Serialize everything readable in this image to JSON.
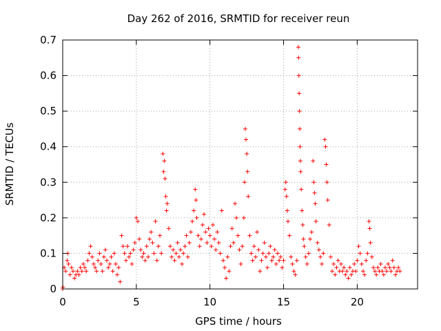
{
  "chart_data": {
    "type": "scatter",
    "title": "Day 262 of 2016, SRMTID for receiver reun",
    "xlabel": "GPS time / hours",
    "ylabel": "SRMTID / TECUs",
    "xlim": [
      0,
      24.1
    ],
    "ylim": [
      0,
      0.7
    ],
    "xticks": [
      0,
      5,
      10,
      15,
      20
    ],
    "xtick_labels": [
      "0",
      "5",
      "10",
      "15",
      "20"
    ],
    "yticks": [
      0,
      0.1,
      0.2,
      0.3,
      0.4,
      0.5,
      0.6,
      0.7
    ],
    "ytick_labels": [
      "0",
      "0.1",
      "0.2",
      "0.3",
      "0.4",
      "0.5",
      "0.6",
      "0.7"
    ],
    "grid": true,
    "marker": "+",
    "series": [
      {
        "name": "SRMTID",
        "color": "#ff0000",
        "points": [
          [
            0.0,
            0.0
          ],
          [
            0.02,
            0.005
          ],
          [
            0.1,
            0.06
          ],
          [
            0.2,
            0.05
          ],
          [
            0.3,
            0.08
          ],
          [
            0.35,
            0.1
          ],
          [
            0.4,
            0.07
          ],
          [
            0.5,
            0.04
          ],
          [
            0.6,
            0.06
          ],
          [
            0.7,
            0.05
          ],
          [
            0.8,
            0.03
          ],
          [
            0.9,
            0.04
          ],
          [
            1.0,
            0.05
          ],
          [
            1.1,
            0.04
          ],
          [
            1.2,
            0.06
          ],
          [
            1.3,
            0.05
          ],
          [
            1.4,
            0.07
          ],
          [
            1.5,
            0.06
          ],
          [
            1.6,
            0.05
          ],
          [
            1.7,
            0.08
          ],
          [
            1.8,
            0.1
          ],
          [
            1.9,
            0.12
          ],
          [
            2.0,
            0.09
          ],
          [
            2.1,
            0.07
          ],
          [
            2.2,
            0.06
          ],
          [
            2.3,
            0.05
          ],
          [
            2.4,
            0.08
          ],
          [
            2.5,
            0.1
          ],
          [
            2.6,
            0.07
          ],
          [
            2.7,
            0.05
          ],
          [
            2.8,
            0.09
          ],
          [
            2.9,
            0.11
          ],
          [
            3.0,
            0.08
          ],
          [
            3.1,
            0.06
          ],
          [
            3.2,
            0.07
          ],
          [
            3.3,
            0.09
          ],
          [
            3.4,
            0.05
          ],
          [
            3.5,
            0.1
          ],
          [
            3.6,
            0.07
          ],
          [
            3.7,
            0.04
          ],
          [
            3.8,
            0.06
          ],
          [
            3.9,
            0.02
          ],
          [
            4.0,
            0.15
          ],
          [
            4.1,
            0.12
          ],
          [
            4.2,
            0.1
          ],
          [
            4.3,
            0.08
          ],
          [
            4.4,
            0.12
          ],
          [
            4.5,
            0.09
          ],
          [
            4.6,
            0.1
          ],
          [
            4.7,
            0.07
          ],
          [
            4.8,
            0.11
          ],
          [
            4.9,
            0.13
          ],
          [
            5.0,
            0.2
          ],
          [
            5.1,
            0.19
          ],
          [
            5.2,
            0.14
          ],
          [
            5.3,
            0.11
          ],
          [
            5.4,
            0.09
          ],
          [
            5.5,
            0.1
          ],
          [
            5.6,
            0.08
          ],
          [
            5.7,
            0.12
          ],
          [
            5.8,
            0.09
          ],
          [
            5.9,
            0.14
          ],
          [
            6.0,
            0.16
          ],
          [
            6.1,
            0.13
          ],
          [
            6.2,
            0.1
          ],
          [
            6.3,
            0.19
          ],
          [
            6.4,
            0.08
          ],
          [
            6.5,
            0.12
          ],
          [
            6.6,
            0.15
          ],
          [
            6.7,
            0.1
          ],
          [
            6.8,
            0.38
          ],
          [
            6.85,
            0.33
          ],
          [
            6.9,
            0.36
          ],
          [
            6.95,
            0.31
          ],
          [
            7.0,
            0.26
          ],
          [
            7.05,
            0.22
          ],
          [
            7.1,
            0.24
          ],
          [
            7.2,
            0.17
          ],
          [
            7.3,
            0.12
          ],
          [
            7.4,
            0.09
          ],
          [
            7.5,
            0.11
          ],
          [
            7.6,
            0.08
          ],
          [
            7.7,
            0.1
          ],
          [
            7.8,
            0.13
          ],
          [
            7.9,
            0.09
          ],
          [
            8.0,
            0.11
          ],
          [
            8.1,
            0.07
          ],
          [
            8.2,
            0.1
          ],
          [
            8.3,
            0.12
          ],
          [
            8.4,
            0.15
          ],
          [
            8.5,
            0.09
          ],
          [
            8.6,
            0.13
          ],
          [
            8.7,
            0.16
          ],
          [
            8.8,
            0.19
          ],
          [
            8.9,
            0.22
          ],
          [
            9.0,
            0.28
          ],
          [
            9.05,
            0.25
          ],
          [
            9.1,
            0.2
          ],
          [
            9.2,
            0.15
          ],
          [
            9.3,
            0.12
          ],
          [
            9.4,
            0.14
          ],
          [
            9.5,
            0.18
          ],
          [
            9.6,
            0.21
          ],
          [
            9.7,
            0.16
          ],
          [
            9.8,
            0.13
          ],
          [
            9.9,
            0.17
          ],
          [
            10.0,
            0.15
          ],
          [
            10.1,
            0.12
          ],
          [
            10.2,
            0.18
          ],
          [
            10.3,
            0.14
          ],
          [
            10.4,
            0.11
          ],
          [
            10.5,
            0.16
          ],
          [
            10.6,
            0.13
          ],
          [
            10.7,
            0.1
          ],
          [
            10.8,
            0.22
          ],
          [
            10.9,
            0.08
          ],
          [
            11.0,
            0.06
          ],
          [
            11.1,
            0.03
          ],
          [
            11.2,
            0.09
          ],
          [
            11.3,
            0.05
          ],
          [
            11.4,
            0.12
          ],
          [
            11.5,
            0.17
          ],
          [
            11.6,
            0.13
          ],
          [
            11.7,
            0.24
          ],
          [
            11.8,
            0.2
          ],
          [
            11.9,
            0.15
          ],
          [
            12.0,
            0.11
          ],
          [
            12.1,
            0.07
          ],
          [
            12.2,
            0.12
          ],
          [
            12.3,
            0.2
          ],
          [
            12.35,
            0.3
          ],
          [
            12.4,
            0.45
          ],
          [
            12.45,
            0.42
          ],
          [
            12.5,
            0.38
          ],
          [
            12.55,
            0.33
          ],
          [
            12.6,
            0.26
          ],
          [
            12.7,
            0.15
          ],
          [
            12.8,
            0.1
          ],
          [
            12.9,
            0.08
          ],
          [
            13.0,
            0.12
          ],
          [
            13.1,
            0.09
          ],
          [
            13.2,
            0.16
          ],
          [
            13.3,
            0.11
          ],
          [
            13.4,
            0.05
          ],
          [
            13.5,
            0.08
          ],
          [
            13.6,
            0.1
          ],
          [
            13.7,
            0.13
          ],
          [
            13.8,
            0.09
          ],
          [
            13.9,
            0.06
          ],
          [
            14.0,
            0.1
          ],
          [
            14.1,
            0.12
          ],
          [
            14.2,
            0.08
          ],
          [
            14.3,
            0.09
          ],
          [
            14.4,
            0.11
          ],
          [
            14.5,
            0.07
          ],
          [
            14.6,
            0.1
          ],
          [
            14.7,
            0.08
          ],
          [
            14.8,
            0.09
          ],
          [
            14.9,
            0.06
          ],
          [
            15.0,
            0.08
          ],
          [
            15.1,
            0.28
          ],
          [
            15.15,
            0.3
          ],
          [
            15.2,
            0.26
          ],
          [
            15.25,
            0.22
          ],
          [
            15.3,
            0.19
          ],
          [
            15.4,
            0.15
          ],
          [
            15.5,
            0.09
          ],
          [
            15.6,
            0.07
          ],
          [
            15.7,
            0.05
          ],
          [
            15.8,
            0.04
          ],
          [
            15.9,
            0.08
          ],
          [
            16.0,
            0.68
          ],
          [
            16.02,
            0.65
          ],
          [
            16.04,
            0.6
          ],
          [
            16.06,
            0.55
          ],
          [
            16.08,
            0.5
          ],
          [
            16.1,
            0.45
          ],
          [
            16.12,
            0.4
          ],
          [
            16.14,
            0.36
          ],
          [
            16.16,
            0.33
          ],
          [
            16.2,
            0.28
          ],
          [
            16.25,
            0.22
          ],
          [
            16.3,
            0.18
          ],
          [
            16.35,
            0.14
          ],
          [
            16.4,
            0.12
          ],
          [
            16.5,
            0.09
          ],
          [
            16.6,
            0.07
          ],
          [
            16.7,
            0.1
          ],
          [
            16.8,
            0.14
          ],
          [
            16.9,
            0.16
          ],
          [
            17.0,
            0.36
          ],
          [
            17.05,
            0.3
          ],
          [
            17.1,
            0.27
          ],
          [
            17.15,
            0.24
          ],
          [
            17.2,
            0.19
          ],
          [
            17.3,
            0.13
          ],
          [
            17.4,
            0.11
          ],
          [
            17.5,
            0.09
          ],
          [
            17.6,
            0.07
          ],
          [
            17.7,
            0.1
          ],
          [
            17.8,
            0.42
          ],
          [
            17.85,
            0.4
          ],
          [
            17.9,
            0.35
          ],
          [
            17.95,
            0.3
          ],
          [
            18.0,
            0.25
          ],
          [
            18.1,
            0.18
          ],
          [
            18.2,
            0.09
          ],
          [
            18.3,
            0.05
          ],
          [
            18.4,
            0.07
          ],
          [
            18.5,
            0.04
          ],
          [
            18.6,
            0.06
          ],
          [
            18.7,
            0.08
          ],
          [
            18.8,
            0.05
          ],
          [
            18.9,
            0.07
          ],
          [
            19.0,
            0.05
          ],
          [
            19.1,
            0.06
          ],
          [
            19.2,
            0.04
          ],
          [
            19.3,
            0.05
          ],
          [
            19.4,
            0.03
          ],
          [
            19.5,
            0.06
          ],
          [
            19.6,
            0.04
          ],
          [
            19.7,
            0.05
          ],
          [
            19.8,
            0.07
          ],
          [
            19.9,
            0.05
          ],
          [
            20.0,
            0.08
          ],
          [
            20.1,
            0.12
          ],
          [
            20.2,
            0.1
          ],
          [
            20.3,
            0.07
          ],
          [
            20.4,
            0.05
          ],
          [
            20.5,
            0.04
          ],
          [
            20.6,
            0.08
          ],
          [
            20.7,
            0.1
          ],
          [
            20.8,
            0.19
          ],
          [
            20.85,
            0.17
          ],
          [
            20.9,
            0.13
          ],
          [
            21.0,
            0.09
          ],
          [
            21.1,
            0.06
          ],
          [
            21.2,
            0.05
          ],
          [
            21.3,
            0.04
          ],
          [
            21.4,
            0.06
          ],
          [
            21.5,
            0.05
          ],
          [
            21.6,
            0.07
          ],
          [
            21.7,
            0.05
          ],
          [
            21.8,
            0.04
          ],
          [
            21.9,
            0.06
          ],
          [
            22.0,
            0.05
          ],
          [
            22.1,
            0.07
          ],
          [
            22.2,
            0.06
          ],
          [
            22.3,
            0.05
          ],
          [
            22.4,
            0.08
          ],
          [
            22.5,
            0.06
          ],
          [
            22.6,
            0.04
          ],
          [
            22.7,
            0.05
          ],
          [
            22.8,
            0.06
          ],
          [
            22.9,
            0.05
          ]
        ]
      }
    ]
  }
}
